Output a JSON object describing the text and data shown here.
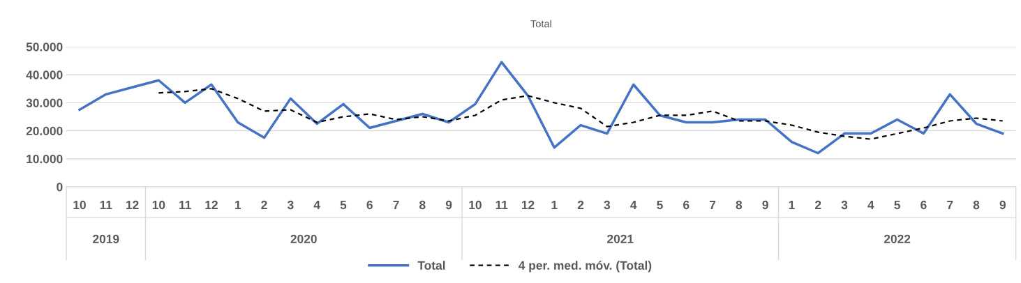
{
  "chart_data": {
    "type": "line",
    "title": "Total",
    "categories": [
      "10",
      "11",
      "12",
      "10",
      "11",
      "12",
      "1",
      "2",
      "3",
      "4",
      "5",
      "6",
      "7",
      "8",
      "9",
      "10",
      "11",
      "12",
      "1",
      "2",
      "3",
      "4",
      "5",
      "6",
      "7",
      "8",
      "9",
      "1",
      "2",
      "3",
      "4",
      "5",
      "6",
      "7",
      "8",
      "9"
    ],
    "series": [
      {
        "name": "Total",
        "color": "#4472c4",
        "line_style": "solid",
        "values": [
          27500,
          33000,
          35500,
          38000,
          30000,
          36500,
          23000,
          17500,
          31500,
          22500,
          29500,
          21000,
          23500,
          26000,
          23000,
          29500,
          44500,
          32500,
          14000,
          22000,
          19000,
          36500,
          25500,
          23000,
          23000,
          24000,
          24000,
          16000,
          12000,
          19000,
          19000,
          24000,
          19000,
          33000,
          22500,
          19000
        ]
      },
      {
        "name": "4 per. med. móv. (Total)",
        "color": "#000000",
        "line_style": "dashed",
        "values": [
          null,
          null,
          null,
          33500,
          34000,
          35000,
          31500,
          27000,
          27500,
          23000,
          25000,
          26000,
          24000,
          25000,
          23500,
          25500,
          31000,
          32500,
          30000,
          28000,
          21500,
          23000,
          25500,
          25500,
          27000,
          23500,
          23500,
          22000,
          19500,
          18000,
          17000,
          19000,
          21000,
          23500,
          24500,
          23500
        ]
      }
    ],
    "annotations": [
      "2019",
      "2020",
      "2021",
      "2022"
    ],
    "ylim": [
      0,
      50000
    ],
    "yticks": [
      {
        "value": 0,
        "label": "0"
      },
      {
        "value": 10000,
        "label": "10.000"
      },
      {
        "value": 20000,
        "label": "20.000"
      },
      {
        "value": 30000,
        "label": "30.000"
      },
      {
        "value": 40000,
        "label": "40.000"
      },
      {
        "value": 50000,
        "label": "50.000"
      }
    ],
    "grid": "y",
    "legend": "bottom",
    "marker": "none"
  }
}
